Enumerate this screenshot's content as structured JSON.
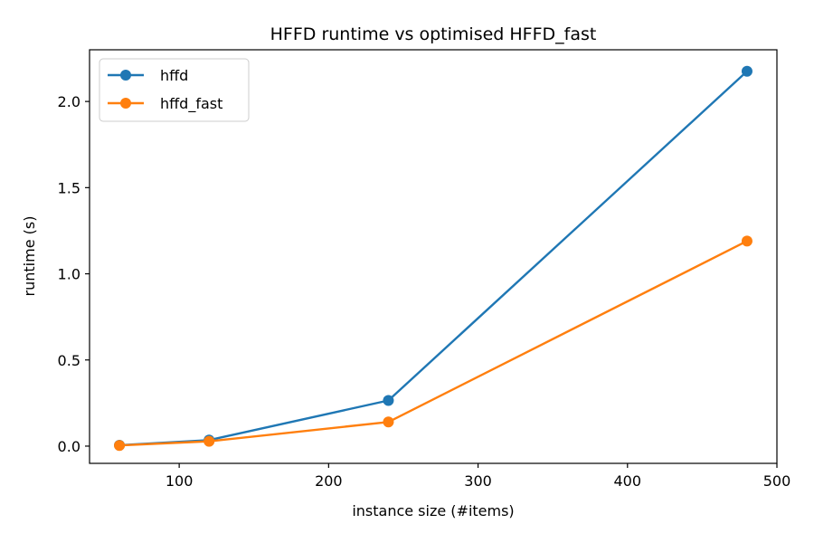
{
  "chart_data": {
    "type": "line",
    "title": "HFFD runtime vs optimised HFFD_fast",
    "xlabel": "instance size  (#items)",
    "ylabel": "runtime  (s)",
    "xlim": [
      40,
      500
    ],
    "ylim": [
      -0.1,
      2.3
    ],
    "xticks": [
      100,
      200,
      300,
      400,
      500
    ],
    "yticks": [
      0.0,
      0.5,
      1.0,
      1.5,
      2.0
    ],
    "xtick_labels": [
      "100",
      "200",
      "300",
      "400",
      "500"
    ],
    "ytick_labels": [
      "0.0",
      "0.5",
      "1.0",
      "1.5",
      "2.0"
    ],
    "grid": false,
    "legend": "top-left",
    "x": [
      60,
      120,
      240,
      480
    ],
    "series": [
      {
        "name": "hffd",
        "color": "#1f77b4",
        "values": [
          0.005,
          0.035,
          0.265,
          2.175
        ]
      },
      {
        "name": "hffd_fast",
        "color": "#ff7f0e",
        "values": [
          0.004,
          0.028,
          0.14,
          1.19
        ]
      }
    ]
  }
}
